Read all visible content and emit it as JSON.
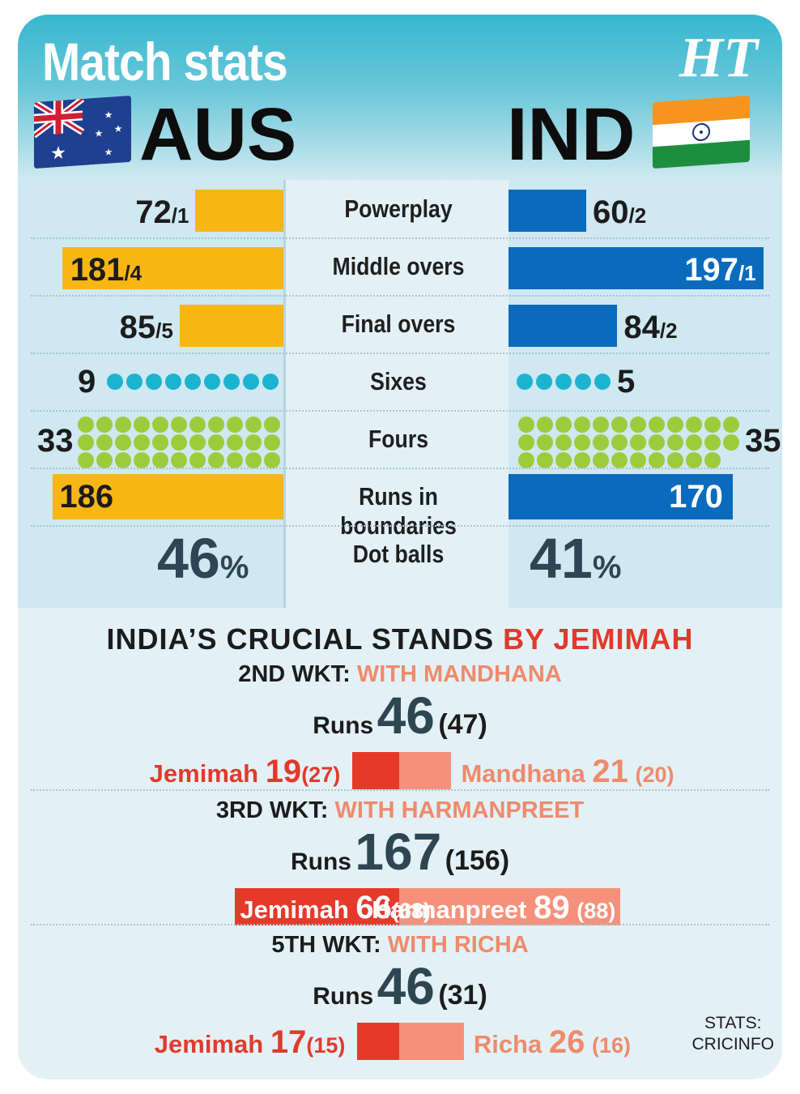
{
  "title": "Match stats",
  "logo": "HT",
  "teams": {
    "left": "AUS",
    "right": "IND"
  },
  "chart_data": {
    "type": "table",
    "rows": [
      {
        "label": "Powerplay",
        "aus": {
          "runs": 72,
          "wkts": "/1"
        },
        "ind": {
          "runs": 60,
          "wkts": "/2"
        }
      },
      {
        "label": "Middle overs",
        "aus": {
          "runs": 181,
          "wkts": "/4"
        },
        "ind": {
          "runs": 197,
          "wkts": "/1"
        }
      },
      {
        "label": "Final overs",
        "aus": {
          "runs": 85,
          "wkts": "/5"
        },
        "ind": {
          "runs": 84,
          "wkts": "/2"
        }
      },
      {
        "label": "Sixes",
        "aus": 9,
        "ind": 5
      },
      {
        "label": "Fours",
        "aus": 33,
        "ind": 35
      },
      {
        "label": "Runs in boundaries",
        "aus": 186,
        "ind": 170
      },
      {
        "label": "Dot balls",
        "aus": "46",
        "ind": "41",
        "unit": "%"
      }
    ]
  },
  "stands": {
    "title": "INDIA’S CRUCIAL STANDS",
    "title_highlight": "BY JEMIMAH",
    "runs_label": "Runs",
    "items": [
      {
        "wkt": "2ND WKT:",
        "with": "WITH MANDHANA",
        "runs": "46",
        "balls": "(47)",
        "a_name": "Jemimah",
        "a_runs": "19",
        "a_balls": "(27)",
        "b_name": "Mandhana",
        "b_runs": "21",
        "b_balls": "(20)"
      },
      {
        "wkt": "3RD WKT:",
        "with": "WITH HARMANPREET",
        "runs": "167",
        "balls": "(156)",
        "a_name": "Jemimah",
        "a_runs": "66",
        "a_balls": "(68)",
        "b_name": "Harmanpreet",
        "b_runs": "89",
        "b_balls": "(88)"
      },
      {
        "wkt": "5TH WKT:",
        "with": "WITH RICHA",
        "runs": "46",
        "balls": "(31)",
        "a_name": "Jemimah",
        "a_runs": "17",
        "a_balls": "(15)",
        "b_name": "Richa",
        "b_runs": "26",
        "b_balls": "(16)"
      }
    ]
  },
  "source": {
    "line1": "STATS:",
    "line2": "CRICINFO"
  },
  "colors": {
    "aus": "#f8b615",
    "ind": "#0a6bbd",
    "sixes": "#1cb3d0",
    "fours": "#9ccc3c",
    "jemimah": "#e5392a",
    "partner": "#f5917a"
  }
}
